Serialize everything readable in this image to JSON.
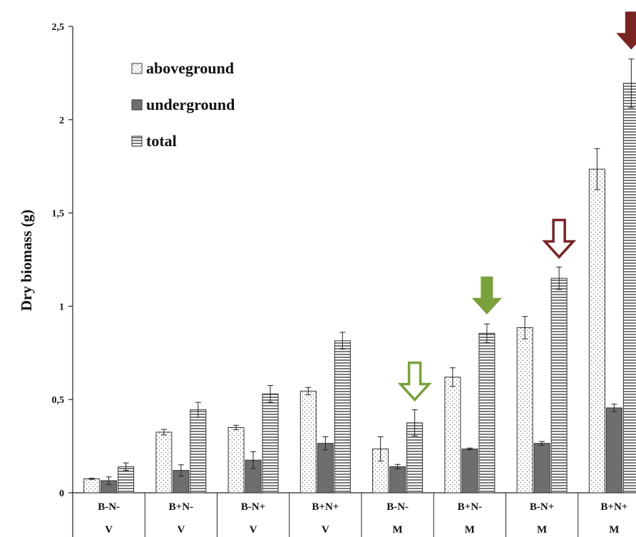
{
  "chart_data": {
    "type": "bar",
    "ylabel": "Dry biomass (g)",
    "ylim": [
      0,
      2.5
    ],
    "yticks": [
      "0",
      "0,5",
      "1",
      "1,5",
      "2",
      "2,5"
    ],
    "ytick_values": [
      0,
      0.5,
      1,
      1.5,
      2,
      2.5
    ],
    "categories": [
      "B-N-",
      "B+N-",
      "B-N+",
      "B+N+",
      "B-N-",
      "B+N-",
      "B-N+",
      "B+N+"
    ],
    "groups": [
      "V",
      "V",
      "V",
      "V",
      "M",
      "M",
      "M",
      "M"
    ],
    "series": [
      {
        "name": "aboveground",
        "pattern": "dots",
        "values": [
          0.075,
          0.325,
          0.35,
          0.545,
          0.235,
          0.62,
          0.885,
          1.735
        ],
        "errors": [
          0.003,
          0.015,
          0.012,
          0.02,
          0.065,
          0.05,
          0.06,
          0.11
        ]
      },
      {
        "name": "underground",
        "pattern": "solid",
        "values": [
          0.065,
          0.12,
          0.175,
          0.265,
          0.14,
          0.235,
          0.265,
          0.455
        ],
        "errors": [
          0.02,
          0.03,
          0.045,
          0.035,
          0.012,
          0.005,
          0.01,
          0.02
        ]
      },
      {
        "name": "total",
        "pattern": "hlines",
        "values": [
          0.14,
          0.445,
          0.53,
          0.815,
          0.375,
          0.855,
          1.15,
          2.195
        ],
        "errors": [
          0.02,
          0.04,
          0.045,
          0.045,
          0.07,
          0.05,
          0.06,
          0.13
        ]
      }
    ],
    "legend": [
      "aboveground",
      "underground",
      "total"
    ],
    "legend_position": "top-left",
    "grid": false,
    "annotations": [
      {
        "type": "arrow-hollow",
        "color": "#7aa23c",
        "category_index": 4,
        "series": "total"
      },
      {
        "type": "arrow-filled",
        "color": "#7aa23c",
        "category_index": 5,
        "series": "total"
      },
      {
        "type": "arrow-hollow",
        "color": "#7a2424",
        "category_index": 6,
        "series": "total"
      },
      {
        "type": "arrow-filled",
        "color": "#7a2424",
        "category_index": 7,
        "series": "total"
      }
    ],
    "colors": {
      "solid": "#6e6e6e",
      "outline": "#333333",
      "green": "#7aa23c",
      "red": "#7a2424"
    }
  }
}
